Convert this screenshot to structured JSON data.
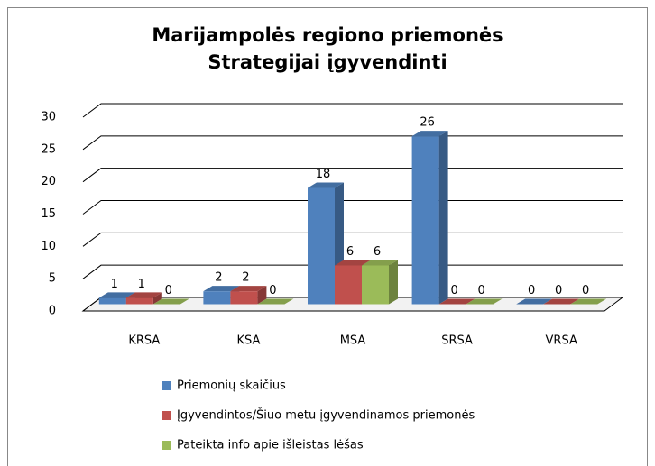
{
  "chart_data": {
    "type": "bar3d",
    "title": "Marijampolės regiono priemonės Strategijai įgyvendinti",
    "categories": [
      "KRSA",
      "KSA",
      "MSA",
      "SRSA",
      "VRSA"
    ],
    "series": [
      {
        "name": "Priemonių skaičius",
        "color": "#4f81bd",
        "values": [
          1,
          2,
          18,
          26,
          0
        ]
      },
      {
        "name": "Įgyvendintos/Šiuo metu įgyvendinamos priemonės",
        "color": "#c0504d",
        "values": [
          1,
          2,
          6,
          0,
          0
        ]
      },
      {
        "name": "Pateikta info apie išleistas lėšas",
        "color": "#9bbb59",
        "values": [
          0,
          0,
          6,
          0,
          0
        ]
      }
    ],
    "ylim": [
      0,
      30
    ],
    "yticks": [
      0,
      5,
      10,
      15,
      20,
      25,
      30
    ],
    "grid": true
  }
}
